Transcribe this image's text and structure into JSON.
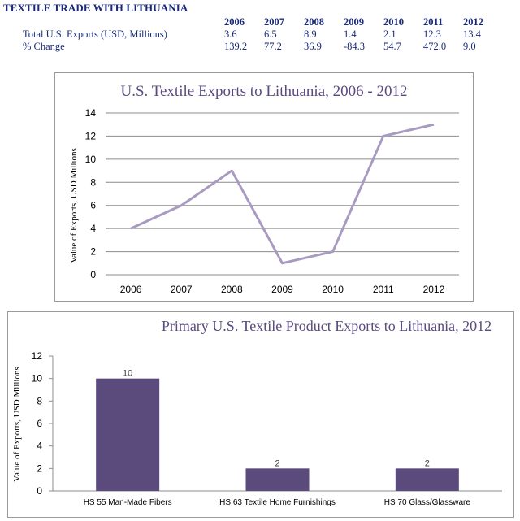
{
  "heading": "TEXTILE TRADE WITH LITHUANIA",
  "table": {
    "years": [
      "2006",
      "2007",
      "2008",
      "2009",
      "2010",
      "2011",
      "2012"
    ],
    "rows": [
      {
        "label": "Total U.S. Exports (USD, Millions)",
        "values": [
          "3.6",
          "6.5",
          "8.9",
          "1.4",
          "2.1",
          "12.3",
          "13.4"
        ]
      },
      {
        "label": "% Change",
        "values": [
          "139.2",
          "77.2",
          "36.9",
          "-84.3",
          "54.7",
          "472.0",
          "9.0"
        ]
      }
    ]
  },
  "colors": {
    "line": "#a89ac0",
    "bar": "#5b4a7c",
    "grid": "#8c8c8c"
  },
  "chart_data": [
    {
      "type": "line",
      "title": "U.S. Textile Exports to Lithuania, 2006 - 2012",
      "xlabel": "",
      "ylabel": "Value of Exports, USD Millions",
      "categories": [
        "2006",
        "2007",
        "2008",
        "2009",
        "2010",
        "2011",
        "2012"
      ],
      "values": [
        4,
        6,
        9,
        1,
        2,
        12,
        13
      ],
      "ylim": [
        0,
        14
      ],
      "yticks": [
        0,
        2,
        4,
        6,
        8,
        10,
        12,
        14
      ],
      "grid": true
    },
    {
      "type": "bar",
      "title": "Primary U.S. Textile Product Exports to Lithuania, 2012",
      "xlabel": "",
      "ylabel": "Value of Exports, USD Millions",
      "categories": [
        "HS 55 Man-Made Fibers",
        "HS 63 Textile Home Furnishings",
        "HS 70 Glass/Glassware"
      ],
      "values": [
        10,
        2,
        2
      ],
      "data_labels": [
        "10",
        "2",
        "2"
      ],
      "ylim": [
        0,
        12
      ],
      "yticks": [
        0,
        2,
        4,
        6,
        8,
        10,
        12
      ],
      "grid": false
    }
  ]
}
